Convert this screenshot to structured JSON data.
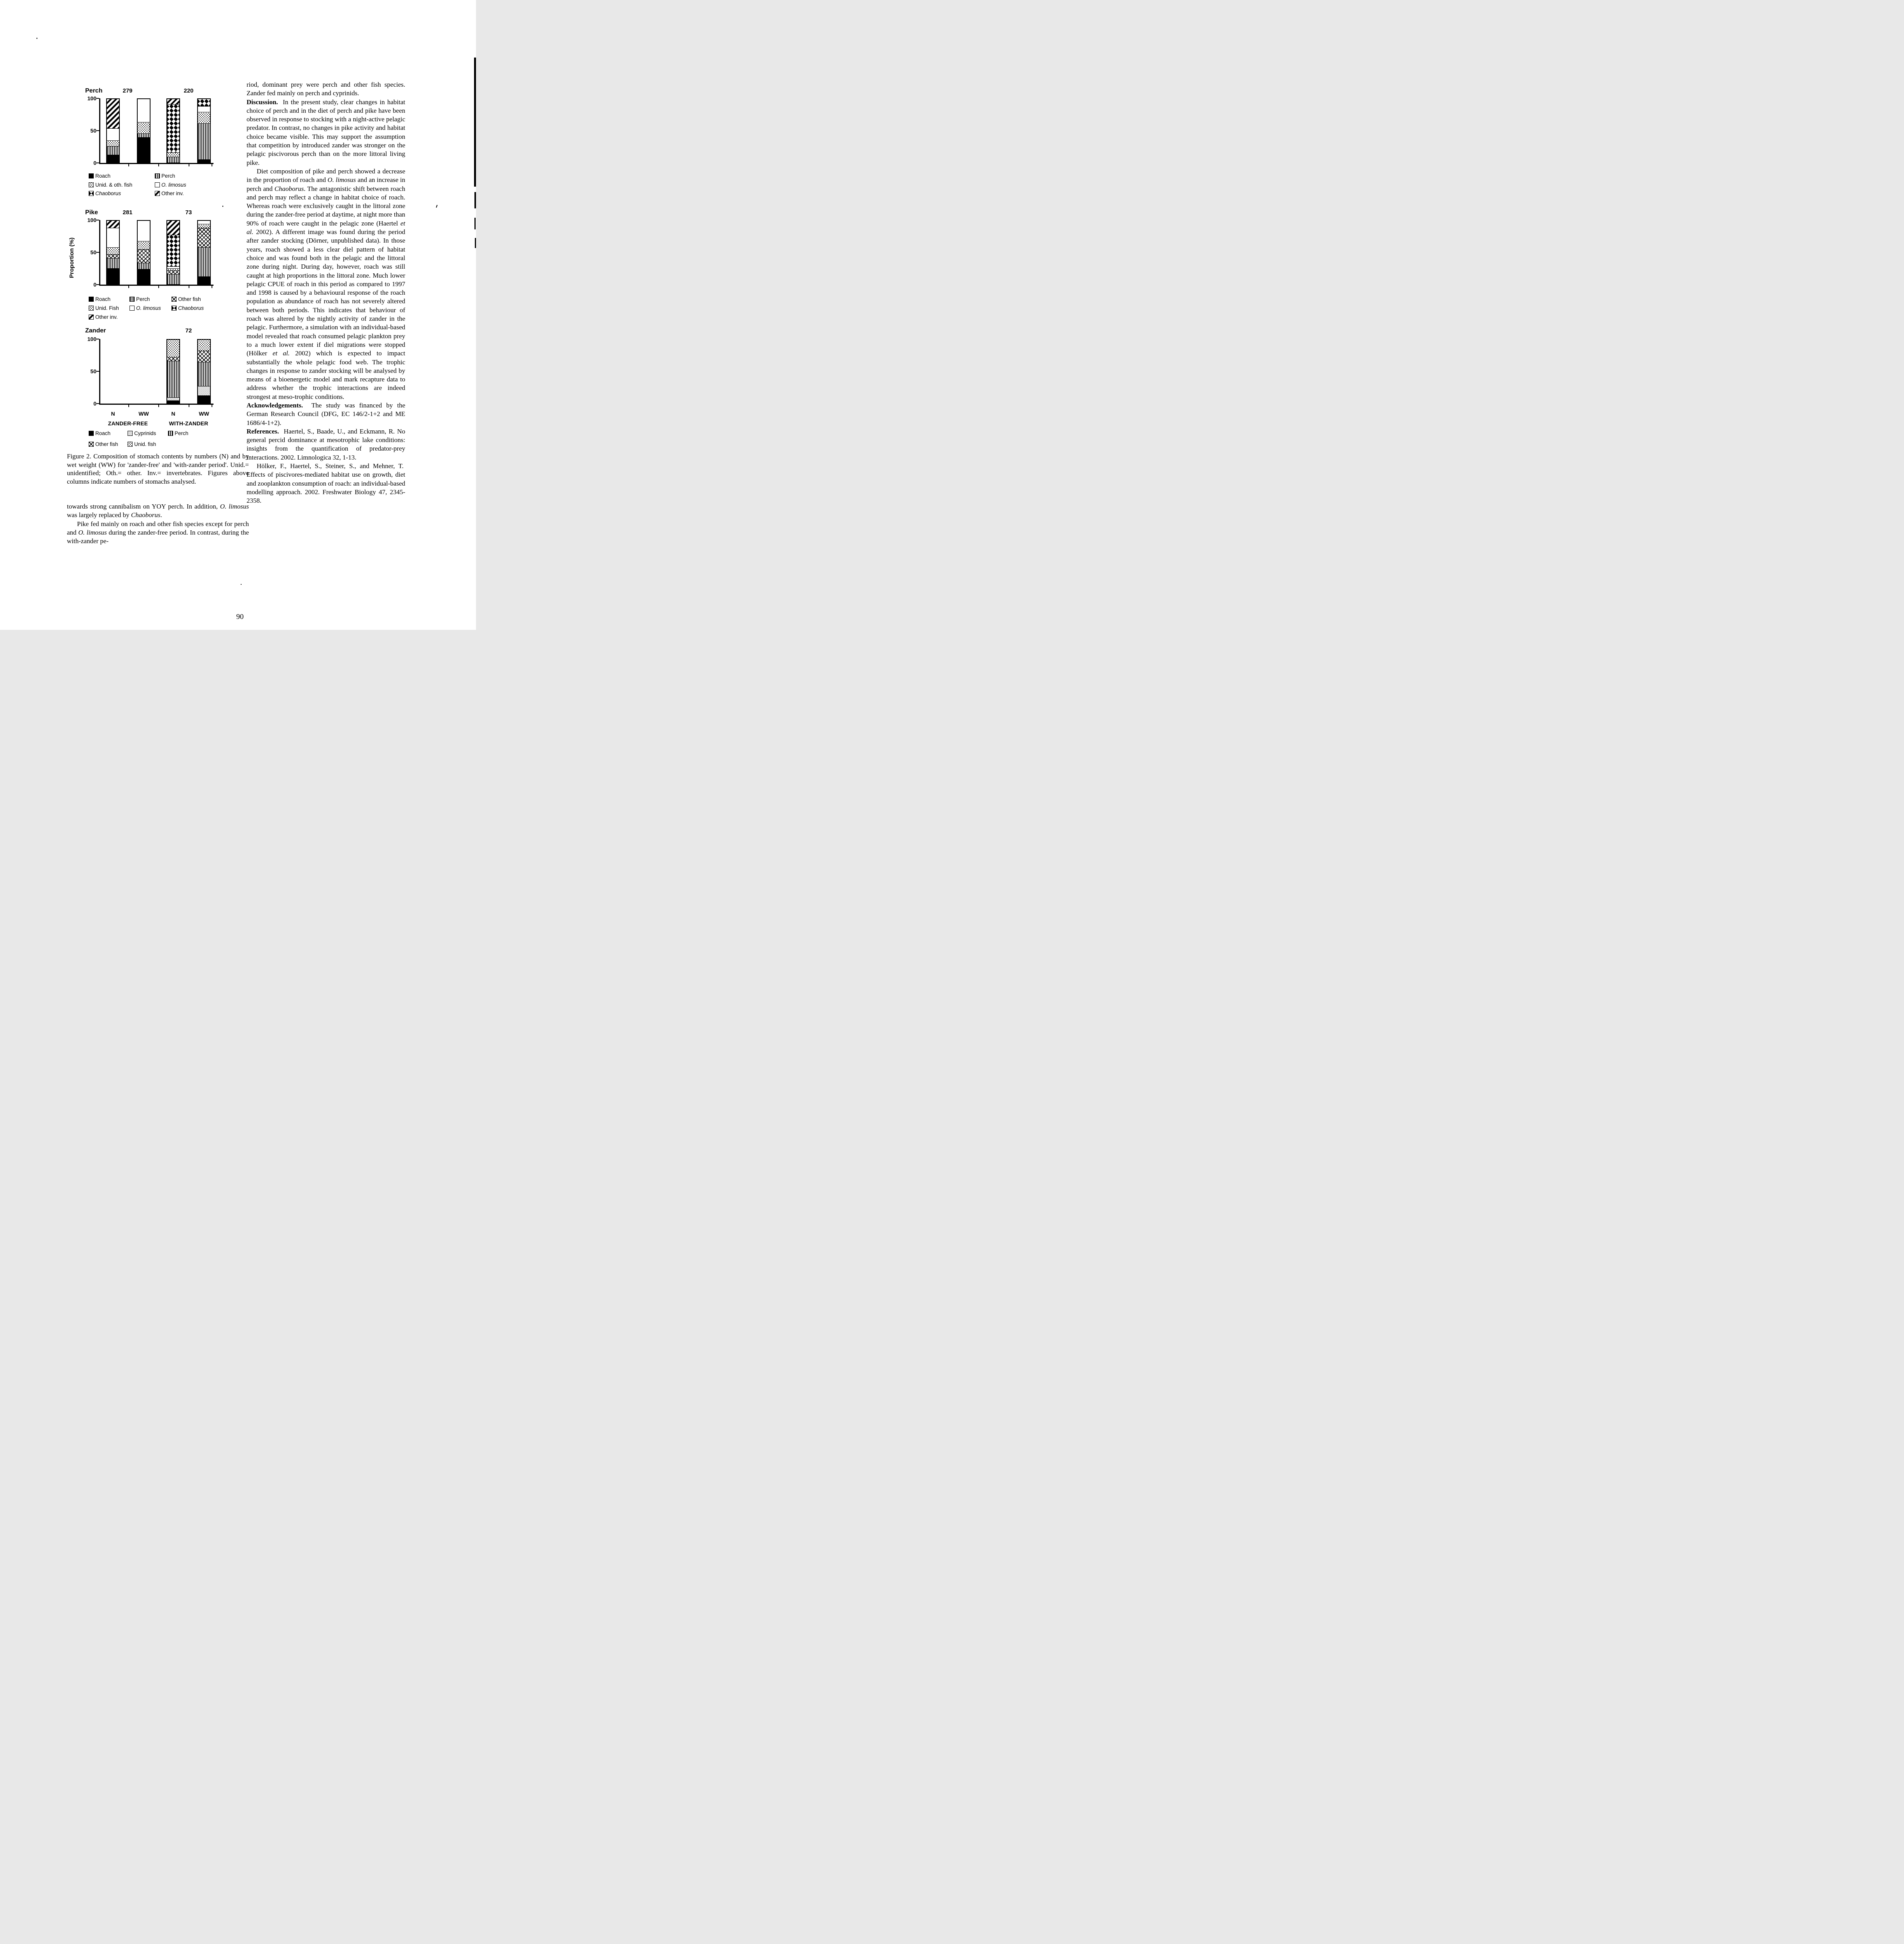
{
  "page": {
    "number": "90"
  },
  "figure": {
    "ylabel": "Proportion (%)",
    "x_axis": {
      "categories": [
        "N",
        "WW",
        "N",
        "WW"
      ],
      "groups": [
        "ZANDER-FREE",
        "WITH-ZANDER"
      ]
    },
    "caption": [
      {
        "t": "Figure 2. Composition of stomach contents by numbers (N) and by wet weight (WW) for 'zander-free' and 'with-zander period'. Unid.= unidentified; Oth.= other. Inv.= invertebrates. Figures above columns indicate numbers of stomachs analysed."
      }
    ]
  },
  "chart_data": [
    {
      "type": "bar",
      "subtype": "stacked-100pct",
      "title": "Perch",
      "ylim": [
        0,
        100
      ],
      "yticks": [
        100,
        50,
        0
      ],
      "categories": [
        "N",
        "WW",
        "N",
        "WW"
      ],
      "counts_above_columns": [
        {
          "label": "279",
          "pair": 0
        },
        {
          "label": "220",
          "pair": 1
        }
      ],
      "legend": [
        {
          "label": "Roach",
          "pattern": "roach"
        },
        {
          "label": "Perch",
          "pattern": "perch"
        },
        {
          "label": "Unid. & oth. fish",
          "pattern": "unid"
        },
        {
          "label": "O. limosus",
          "pattern": "o_limosus",
          "italic": true
        },
        {
          "label": "Chaoborus",
          "pattern": "chaoborus",
          "italic": true
        },
        {
          "label": "Other inv.",
          "pattern": "other_inv"
        }
      ],
      "legend_cols": 2,
      "bars": [
        {
          "slot": 0,
          "category": "N",
          "segments": [
            [
              "roach",
              12
            ],
            [
              "perch",
              14
            ],
            [
              "unid",
              9
            ],
            [
              "o_limosus",
              19
            ],
            [
              "other_inv",
              46
            ]
          ]
        },
        {
          "slot": 1,
          "category": "WW",
          "segments": [
            [
              "roach",
              40
            ],
            [
              "perch",
              6
            ],
            [
              "unid",
              18
            ],
            [
              "o_limosus",
              36
            ]
          ]
        },
        {
          "slot": 2,
          "category": "N",
          "segments": [
            [
              "perch",
              9
            ],
            [
              "unid",
              7
            ],
            [
              "chaoborus",
              76
            ],
            [
              "other_inv",
              8
            ]
          ]
        },
        {
          "slot": 3,
          "category": "WW",
          "segments": [
            [
              "roach",
              5
            ],
            [
              "perch",
              57
            ],
            [
              "unid",
              18
            ],
            [
              "o_limosus",
              9
            ],
            [
              "chaoborus",
              11
            ]
          ]
        }
      ]
    },
    {
      "type": "bar",
      "subtype": "stacked-100pct",
      "title": "Pike",
      "ylim": [
        0,
        100
      ],
      "yticks": [
        100,
        50,
        0
      ],
      "categories": [
        "N",
        "WW",
        "N",
        "WW"
      ],
      "counts_above_columns": [
        {
          "label": "281",
          "pair": 0
        },
        {
          "label": "73",
          "pair": 1
        }
      ],
      "legend": [
        {
          "label": "Roach",
          "pattern": "roach"
        },
        {
          "label": "Perch",
          "pattern": "perch"
        },
        {
          "label": "Other fish",
          "pattern": "other_fish"
        },
        {
          "label": "Unid. Fish",
          "pattern": "unid"
        },
        {
          "label": "O. limosus",
          "pattern": "o_limosus",
          "italic": true
        },
        {
          "label": "Chaoborus",
          "pattern": "chaoborus",
          "italic": true
        },
        {
          "label": "Other inv.",
          "pattern": "other_inv"
        }
      ],
      "legend_cols": 3,
      "bars": [
        {
          "slot": 0,
          "category": "N",
          "segments": [
            [
              "roach",
              25
            ],
            [
              "perch",
              16
            ],
            [
              "other_fish",
              6
            ],
            [
              "unid",
              11
            ],
            [
              "o_limosus",
              31
            ],
            [
              "other_inv",
              11
            ]
          ]
        },
        {
          "slot": 1,
          "category": "WW",
          "segments": [
            [
              "roach",
              24
            ],
            [
              "perch",
              10
            ],
            [
              "other_fish",
              21
            ],
            [
              "unid",
              13
            ],
            [
              "o_limosus",
              32
            ]
          ]
        },
        {
          "slot": 2,
          "category": "N",
          "segments": [
            [
              "perch",
              16
            ],
            [
              "other_fish",
              6
            ],
            [
              "unid",
              3
            ],
            [
              "o_limosus",
              3
            ],
            [
              "chaoborus",
              50
            ],
            [
              "other_inv",
              22
            ]
          ]
        },
        {
          "slot": 3,
          "category": "WW",
          "segments": [
            [
              "roach",
              12
            ],
            [
              "perch",
              46
            ],
            [
              "other_fish",
              31
            ],
            [
              "unid",
              6
            ],
            [
              "o_limosus",
              5
            ]
          ]
        }
      ]
    },
    {
      "type": "bar",
      "subtype": "stacked-100pct",
      "title": "Zander",
      "ylim": [
        0,
        100
      ],
      "yticks": [
        100,
        50,
        0
      ],
      "categories": [
        "N",
        "WW",
        "N",
        "WW"
      ],
      "counts_above_columns": [
        {
          "label": "72",
          "pair": 1
        }
      ],
      "legend": [
        {
          "label": "Roach",
          "pattern": "roach"
        },
        {
          "label": "Cyprinids",
          "pattern": "cyprinids"
        },
        {
          "label": "Perch",
          "pattern": "perch"
        },
        {
          "label": "Other fish",
          "pattern": "other_fish"
        },
        {
          "label": "Unid. fish",
          "pattern": "unid"
        }
      ],
      "legend_cols": 3,
      "bars": [
        {
          "slot": 2,
          "category": "N",
          "segments": [
            [
              "roach",
              4
            ],
            [
              "cyprinids",
              5
            ],
            [
              "perch",
              58
            ],
            [
              "other_fish",
              6
            ],
            [
              "unid",
              27
            ]
          ]
        },
        {
          "slot": 3,
          "category": "WW",
          "segments": [
            [
              "roach",
              12
            ],
            [
              "cyprinids",
              15
            ],
            [
              "perch",
              38
            ],
            [
              "other_fish",
              18
            ],
            [
              "unid",
              17
            ]
          ]
        }
      ]
    }
  ],
  "left_column": {
    "paragraphs": [
      {
        "indent": false,
        "runs": [
          {
            "t": "towards strong cannibalism on YOY perch. In addition, "
          },
          {
            "t": "O. limosus",
            "i": true
          },
          {
            "t": " was largely replaced by "
          },
          {
            "t": "Chaoborus",
            "i": true
          },
          {
            "t": "."
          }
        ]
      },
      {
        "indent": true,
        "runs": [
          {
            "t": "Pike fed mainly on roach and other fish species except for perch and "
          },
          {
            "t": "O. limosus",
            "i": true
          },
          {
            "t": " during the zander-free period. In contrast, during the with-zander pe-"
          }
        ]
      }
    ]
  },
  "right_column": {
    "paragraphs": [
      {
        "indent": false,
        "runs": [
          {
            "t": "riod, dominant prey were perch and other fish species. Zander fed mainly on perch and cyprinids."
          }
        ]
      },
      {
        "indent": false,
        "runs": [
          {
            "t": "Discussion.",
            "b": true
          },
          {
            "t": "  In the present study, clear changes in habitat choice of perch and in the diet of perch and pike have been observed in response to stocking with a night-active pelagic predator. In contrast, no changes in pike activity and habitat choice became visible. This may support the assumption that competition by introduced zander was stronger on the pelagic piscivorous perch than on the more littoral living pike."
          }
        ]
      },
      {
        "indent": true,
        "runs": [
          {
            "t": "Diet composition of pike and perch showed a decrease in the proportion of roach and "
          },
          {
            "t": "O. limosus",
            "i": true
          },
          {
            "t": " and an increase in perch and "
          },
          {
            "t": "Chaoborus",
            "i": true
          },
          {
            "t": ". The antagonistic shift between roach and perch may reflect a change in habitat choice of roach. Whereas roach were exclusively caught in the littoral zone during the zander-free period at daytime, at night more than 90% of roach were caught in the pelagic zone (Haertel "
          },
          {
            "t": "et al.",
            "i": true
          },
          {
            "t": " 2002). A different image was found during the period after zander stocking (Dörner, unpublished data). In those years, roach showed a less clear diel pattern of habitat choice and was found both in the pelagic and the littoral zone during night. During day, however, roach was still caught at high proportions in the littoral zone. Much lower pelagic CPUE of roach in this period as compared to 1997 and 1998 is caused by a behavioural response of the roach population as abundance of roach has not severely altered between both periods. This indicates that behaviour of roach was altered by the nightly activity of zander in the pelagic. Furthermore, a simulation with an individual-based model revealed that roach consumed pelagic plankton prey to a much lower extent if diel migrations were stopped (Hölker "
          },
          {
            "t": "et al.",
            "i": true
          },
          {
            "t": " 2002) which is expected to impact substantially the whole pelagic food web. The trophic changes in response to zander stocking will be analysed by means of a bioenergetic model and mark recapture data to address whether the trophic interactions are indeed strongest at meso-trophic conditions."
          }
        ]
      },
      {
        "indent": false,
        "runs": [
          {
            "t": "Acknowledgements.",
            "b": true
          },
          {
            "t": "  The study was financed by the German Research Council (DFG, EC 146/2-1+2 and ME 1686/4-1+2)."
          }
        ]
      },
      {
        "indent": false,
        "runs": [
          {
            "t": "References.",
            "b": true
          },
          {
            "t": "  Haertel, S., Baade, U., and Eckmann, R. No general percid dominance at mesotrophic lake conditions: insights from the quantification of predator-prey interactions. 2002. Limnologica 32, 1-13."
          }
        ]
      },
      {
        "indent": true,
        "runs": [
          {
            "t": "Hölker, F., Haertel, S., Steiner, S., and Mehner, T.  Effects of piscivores-mediated habitat use on growth, diet and zooplankton consumption of roach: an individual-based modelling approach. 2002. Freshwater Biology 47, 2345-2358."
          }
        ]
      }
    ]
  }
}
